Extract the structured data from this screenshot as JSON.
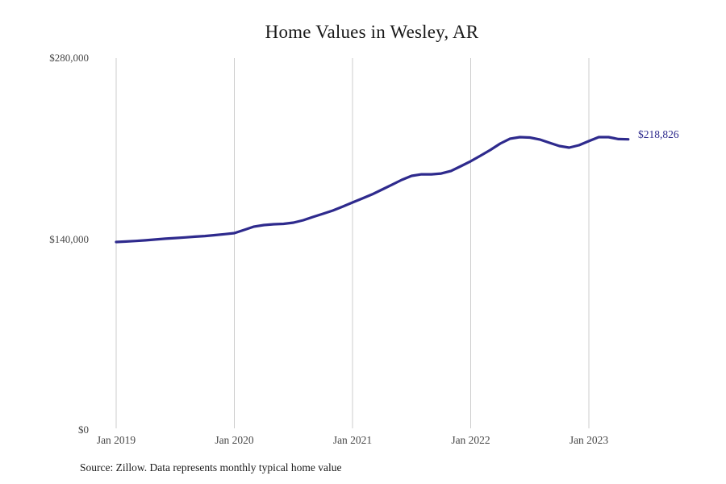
{
  "page": {
    "title": "Home Values in Wesley, AR",
    "source_note": "Source: Zillow. Data represents monthly typical home value"
  },
  "chart_data": {
    "type": "line",
    "title": "Home Values in Wesley, AR",
    "xlabel": "",
    "ylabel": "",
    "ylim": [
      0,
      280000
    ],
    "grid": "vertical-only",
    "legend": "none",
    "line_color": "#2e2a8d",
    "grid_color": "#cccccc",
    "series_name": "Monthly typical home value",
    "end_label": "$218,826",
    "end_value": 218826,
    "y_ticks": [
      "$0",
      "$140,000",
      "$280,000"
    ],
    "x_ticks": [
      "Jan 2019",
      "Jan 2020",
      "Jan 2021",
      "Jan 2022",
      "Jan 2023"
    ],
    "x": [
      "Jan 2019",
      "Feb 2019",
      "Mar 2019",
      "Apr 2019",
      "May 2019",
      "Jun 2019",
      "Jul 2019",
      "Aug 2019",
      "Sep 2019",
      "Oct 2019",
      "Nov 2019",
      "Dec 2019",
      "Jan 2020",
      "Feb 2020",
      "Mar 2020",
      "Apr 2020",
      "May 2020",
      "Jun 2020",
      "Jul 2020",
      "Aug 2020",
      "Sep 2020",
      "Oct 2020",
      "Nov 2020",
      "Dec 2020",
      "Jan 2021",
      "Feb 2021",
      "Mar 2021",
      "Apr 2021",
      "May 2021",
      "Jun 2021",
      "Jul 2021",
      "Aug 2021",
      "Sep 2021",
      "Oct 2021",
      "Nov 2021",
      "Dec 2021",
      "Jan 2022",
      "Feb 2022",
      "Mar 2022",
      "Apr 2022",
      "May 2022",
      "Jun 2022",
      "Jul 2022",
      "Aug 2022",
      "Sep 2022",
      "Oct 2022",
      "Nov 2022",
      "Dec 2022",
      "Jan 2023",
      "Feb 2023",
      "Mar 2023",
      "Apr 2023",
      "May 2023"
    ],
    "values": [
      141500,
      141900,
      142300,
      142800,
      143400,
      144000,
      144500,
      145000,
      145500,
      146000,
      146700,
      147400,
      148200,
      150600,
      153100,
      154300,
      154900,
      155200,
      156100,
      157900,
      160400,
      162800,
      165200,
      168200,
      171300,
      174300,
      177400,
      181000,
      184600,
      188300,
      191300,
      192500,
      192500,
      193100,
      195000,
      198600,
      202300,
      206500,
      210800,
      215600,
      219300,
      220500,
      220200,
      218700,
      216200,
      213800,
      212600,
      214400,
      217500,
      220500,
      220500,
      219000,
      218826
    ]
  }
}
